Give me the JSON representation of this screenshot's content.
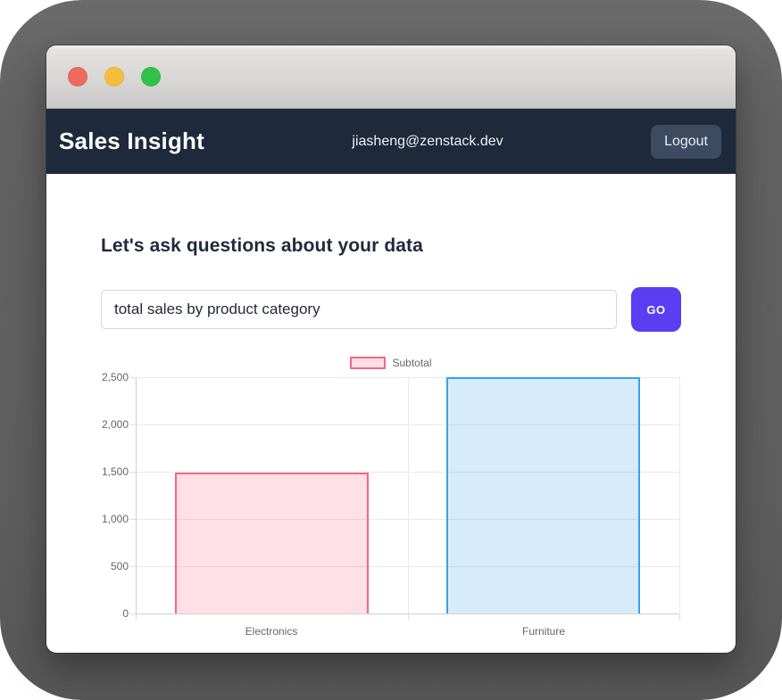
{
  "window": {
    "traffic_lights": [
      {
        "name": "close",
        "color": "#ee6a5e"
      },
      {
        "name": "minimize",
        "color": "#f5bd3b"
      },
      {
        "name": "zoom",
        "color": "#32c146"
      }
    ]
  },
  "navbar": {
    "brand": "Sales Insight",
    "user_email": "jiasheng@zenstack.dev",
    "logout_label": "Logout",
    "bg": "#1e293b",
    "logout_bg": "#3c4b60"
  },
  "main": {
    "heading": "Let's ask questions about your data",
    "query_input": {
      "value": "total sales by product category"
    },
    "go_button_label": "GO",
    "accent": "#5b3df2"
  },
  "chart_data": {
    "type": "bar",
    "categories": [
      "Electronics",
      "Furniture"
    ],
    "series": [
      {
        "name": "Subtotal",
        "values": [
          1490,
          2500
        ]
      }
    ],
    "title": "",
    "xlabel": "",
    "ylabel": "",
    "ylim": [
      0,
      2500
    ],
    "yticks": [
      0,
      500,
      1000,
      1500,
      2000,
      2500
    ],
    "grid": true,
    "legend_position": "top",
    "bar_fills": [
      "rgba(255,99,132,0.2)",
      "rgba(54,162,235,0.2)"
    ],
    "bar_borders": [
      "rgb(255,99,132)",
      "rgb(54,162,235)"
    ],
    "tick_color": "#666666"
  }
}
